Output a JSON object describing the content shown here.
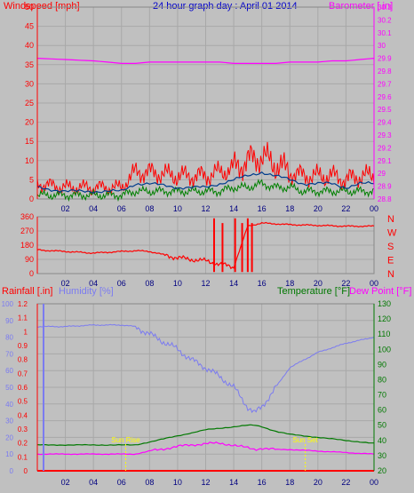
{
  "chart_data": [
    {
      "type": "line",
      "title": "24 hour graph day : April 01 2014",
      "left_axis_label": "Windspeed [mph]",
      "right_axis_label": "Barometer [.in]",
      "x_ticks": [
        "02",
        "04",
        "06",
        "08",
        "10",
        "12",
        "14",
        "16",
        "18",
        "20",
        "22",
        "00"
      ],
      "ylim_left": [
        0,
        50
      ],
      "left_ticks": [
        "0",
        "5",
        "10",
        "15",
        "20",
        "25",
        "30",
        "35",
        "40",
        "45",
        "50"
      ],
      "ylim_right": [
        28.8,
        30.3
      ],
      "right_ticks": [
        "28.8",
        "28.9",
        "29",
        "29.1",
        "29.2",
        "29.3",
        "29.4",
        "29.5",
        "29.6",
        "29.7",
        "29.8",
        "29.9",
        "30",
        "30.1",
        "30.2",
        "30.3"
      ],
      "x": [
        0,
        2,
        4,
        6,
        7,
        8,
        10,
        12,
        13,
        14,
        15,
        16,
        17,
        18,
        19,
        20,
        21,
        22,
        23,
        24
      ],
      "series": [
        {
          "values": [
            29.9,
            29.89,
            29.88,
            29.86,
            29.86,
            29.87,
            29.87,
            29.87,
            29.87,
            29.86,
            29.86,
            29.86,
            29.86,
            29.87,
            29.87,
            29.87,
            29.88,
            29.88,
            29.89,
            29.9
          ]
        },
        {
          "values": [
            4,
            3,
            3,
            3,
            7,
            7,
            6,
            6,
            7,
            8,
            10,
            11,
            9,
            7,
            6,
            6,
            6,
            5,
            6,
            6
          ]
        },
        {
          "values": [
            3,
            2,
            2,
            2,
            4,
            4,
            3,
            3,
            4,
            5,
            6,
            7,
            6,
            5,
            4,
            4,
            4,
            3,
            4,
            4
          ]
        },
        {
          "values": [
            1,
            1,
            1,
            1,
            2,
            2,
            2,
            2,
            2,
            3,
            3,
            4,
            3,
            3,
            2,
            2,
            2,
            2,
            2,
            2
          ]
        }
      ]
    },
    {
      "type": "line",
      "right_labels": [
        "N",
        "W",
        "S",
        "E",
        "N"
      ],
      "ylim": [
        0,
        360
      ],
      "left_ticks": [
        "0",
        "90",
        "180",
        "270",
        "360"
      ],
      "x_ticks": [
        "02",
        "04",
        "06",
        "08",
        "10",
        "12",
        "14",
        "16",
        "18",
        "20",
        "22",
        "00"
      ],
      "x": [
        0,
        2,
        4,
        6,
        7,
        8,
        9,
        10,
        11,
        12,
        13,
        14,
        15,
        16,
        18,
        20,
        22,
        24
      ],
      "values": [
        150,
        140,
        130,
        140,
        145,
        140,
        120,
        100,
        90,
        80,
        60,
        40,
        300,
        320,
        310,
        305,
        300,
        300
      ]
    },
    {
      "type": "line",
      "left_axis_label": "Rainfall [.in]",
      "left_axis_label_2": "Humidity [%]",
      "right_axis_label": "Temperature [°F]",
      "right_axis_label_2": "Dew Point [°F]",
      "rain_ticks": [
        "0",
        "0.1",
        "0.2",
        "0.3",
        "0.4",
        "0.5",
        "0.6",
        "0.7",
        "0.8",
        "0.9",
        "1",
        "1.1",
        "1.2"
      ],
      "ylim_rain": [
        0,
        1.2
      ],
      "humidity_ticks": [
        "0",
        "10",
        "20",
        "30",
        "40",
        "50",
        "60",
        "70",
        "80",
        "90",
        "100"
      ],
      "ylim_humidity": [
        0,
        100
      ],
      "temp_ticks": [
        "20",
        "30",
        "40",
        "50",
        "60",
        "70",
        "80",
        "90",
        "100",
        "110",
        "120",
        "130"
      ],
      "ylim_temp": [
        20,
        130
      ],
      "x_ticks": [
        "02",
        "04",
        "06",
        "08",
        "10",
        "12",
        "14",
        "16",
        "18",
        "20",
        "22",
        "00"
      ],
      "annotations": [
        "Sun Rise",
        "Sun Set"
      ],
      "x": [
        0,
        2,
        4,
        6,
        7,
        8,
        10,
        11,
        12,
        13,
        14,
        15,
        15.5,
        16,
        17,
        18,
        20,
        22,
        24
      ],
      "series": [
        {
          "values": [
            115,
            115,
            116,
            116,
            115,
            110,
            100,
            93,
            88,
            82,
            75,
            62,
            58,
            62,
            75,
            88,
            98,
            104,
            108
          ]
        },
        {
          "values": [
            37,
            37,
            37,
            37,
            37,
            39,
            43,
            45,
            47,
            48,
            49,
            50,
            50,
            49,
            46,
            44,
            42,
            40,
            38
          ]
        },
        {
          "values": [
            31,
            31,
            31,
            31,
            31,
            33,
            36,
            37,
            38,
            38,
            37,
            35,
            34,
            35,
            34,
            34,
            33,
            32,
            31
          ]
        },
        {
          "values": [
            0,
            0,
            0,
            0,
            0,
            0,
            0,
            0,
            0,
            0,
            0,
            0,
            0,
            0,
            0,
            0,
            0,
            0,
            0
          ]
        }
      ]
    }
  ],
  "colors": {
    "wind": "#ff0000",
    "gust": "#003c8c",
    "wind_avg": "#008000",
    "barometer": "#ff00ff",
    "direction": "#ff0000",
    "humidity": "#7b7bf0",
    "temperature": "#007800",
    "dewpoint": "#ff00ff",
    "rain": "#ff0000",
    "sunrise": "#ffff00",
    "plot_bg": "#c0c0c0",
    "grid": "#a8a8a8"
  }
}
